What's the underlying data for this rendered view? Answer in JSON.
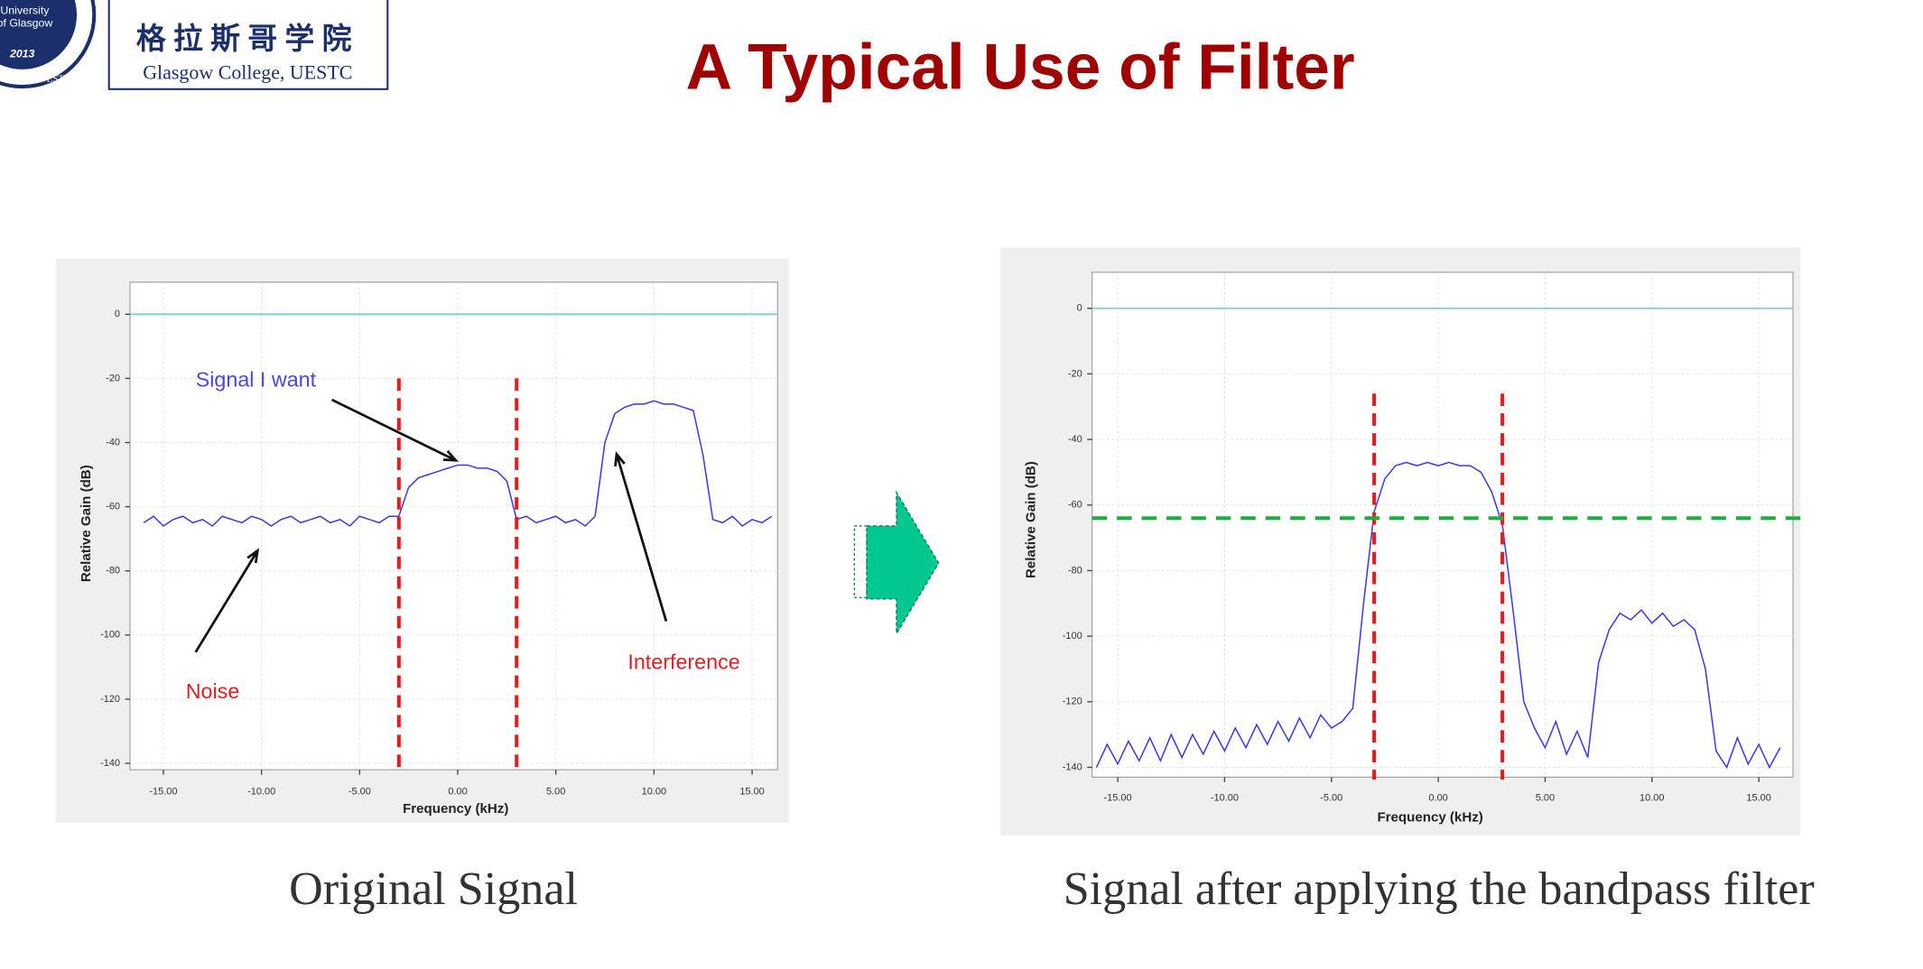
{
  "title": "A Typical Use of Filter",
  "logo": {
    "lines": [
      "University",
      "of Glasgow",
      "2013",
      "College, UESTC"
    ],
    "chinese": "格拉斯哥学院",
    "english": "Glasgow College, UESTC"
  },
  "captions": [
    "Original Signal",
    "Signal after applying the bandpass filter"
  ],
  "chart_data": [
    {
      "type": "line",
      "x_label": "Frequency (kHz)",
      "y_label": "Relative Gain (dB)",
      "xlim": [
        -16.7,
        16.3
      ],
      "ylim": [
        -142,
        10
      ],
      "xticks": [
        {
          "value": -15,
          "label": "-15.00"
        },
        {
          "value": -10,
          "label": "-10.00"
        },
        {
          "value": -5,
          "label": "-5.00"
        },
        {
          "value": 0,
          "label": "0.00"
        },
        {
          "value": 5,
          "label": "5.00"
        },
        {
          "value": 10,
          "label": "10.00"
        },
        {
          "value": 15,
          "label": "15.00"
        }
      ],
      "yticks": [
        0,
        -20,
        -40,
        -60,
        -80,
        -100,
        -120,
        -140
      ],
      "grid": true,
      "reference_line": 0,
      "reference_color": "#7ccfcf",
      "vlines": [
        -3,
        3
      ],
      "vline_color": "#e02020",
      "annotations": [
        {
          "text": "Signal I want",
          "color": "#4a4ad8"
        },
        {
          "text": "Noise",
          "color": "#e02020"
        },
        {
          "text": "Interference",
          "color": "#e02020"
        }
      ],
      "series": [
        {
          "color": "#3a3ae0",
          "x": [
            -16,
            -15.5,
            -15,
            -14.5,
            -14,
            -13.5,
            -13,
            -12.5,
            -12,
            -11.5,
            -11,
            -10.5,
            -10,
            -9.5,
            -9,
            -8.5,
            -8,
            -7.5,
            -7,
            -6.5,
            -6,
            -5.5,
            -5,
            -4.5,
            -4,
            -3.5,
            -3,
            -2.5,
            -2,
            -1.5,
            -1,
            -0.5,
            0,
            0.5,
            1,
            1.5,
            2,
            2.5,
            3,
            3.5,
            4,
            4.5,
            5,
            5.5,
            6,
            6.5,
            7,
            7.5,
            8,
            8.5,
            9,
            9.5,
            10,
            10.5,
            11,
            11.5,
            12,
            12.5,
            13,
            13.5,
            14,
            14.5,
            15,
            15.5,
            16
          ],
          "values": [
            -65,
            -63,
            -66,
            -64,
            -63,
            -65,
            -64,
            -66,
            -63,
            -64,
            -65,
            -63,
            -64,
            -66,
            -64,
            -63,
            -65,
            -64,
            -63,
            -65,
            -64,
            -66,
            -63,
            -64,
            -65,
            -63,
            -63,
            -54,
            -51,
            -50,
            -49,
            -48,
            -47,
            -47,
            -48,
            -48,
            -49,
            -52,
            -64,
            -63,
            -65,
            -64,
            -63,
            -65,
            -64,
            -66,
            -63,
            -40,
            -31,
            -29,
            -28,
            -28,
            -27,
            -28,
            -28,
            -29,
            -30,
            -44,
            -64,
            -65,
            -63,
            -66,
            -64,
            -65,
            -63
          ]
        }
      ]
    },
    {
      "type": "line",
      "x_label": "Frequency (kHz)",
      "y_label": "Relative Gain (dB)",
      "xlim": [
        -16.2,
        16.6
      ],
      "ylim": [
        -143,
        11
      ],
      "xticks": [
        {
          "value": -15,
          "label": "-15.00"
        },
        {
          "value": -10,
          "label": "-10.00"
        },
        {
          "value": -5,
          "label": "-5.00"
        },
        {
          "value": 0,
          "label": "0.00"
        },
        {
          "value": 5,
          "label": "5.00"
        },
        {
          "value": 10,
          "label": "10.00"
        },
        {
          "value": 15,
          "label": "15.00"
        }
      ],
      "yticks": [
        0,
        -20,
        -40,
        -60,
        -80,
        -100,
        -120,
        -140
      ],
      "grid": true,
      "reference_line": 0,
      "reference_color": "#7ccfcf",
      "vlines": [
        -3,
        3
      ],
      "vline_color": "#e02020",
      "hline": -64,
      "hline_color": "#22aa44",
      "series": [
        {
          "color": "#3a3ae0",
          "x": [
            -16,
            -15.5,
            -15,
            -14.5,
            -14,
            -13.5,
            -13,
            -12.5,
            -12,
            -11.5,
            -11,
            -10.5,
            -10,
            -9.5,
            -9,
            -8.5,
            -8,
            -7.5,
            -7,
            -6.5,
            -6,
            -5.5,
            -5,
            -4.5,
            -4,
            -3.5,
            -3,
            -2.5,
            -2,
            -1.5,
            -1,
            -0.5,
            0,
            0.5,
            1,
            1.5,
            2,
            2.5,
            3,
            3.5,
            4,
            4.5,
            5,
            5.5,
            6,
            6.5,
            7,
            7.5,
            8,
            8.5,
            9,
            9.5,
            10,
            10.5,
            11,
            11.5,
            12,
            12.5,
            13,
            13.5,
            14,
            14.5,
            15,
            15.5,
            16
          ],
          "values": [
            -140,
            -133,
            -139,
            -132,
            -138,
            -131,
            -138,
            -130,
            -137,
            -130,
            -136,
            -129,
            -135,
            -128,
            -134,
            -127,
            -133,
            -126,
            -132,
            -125,
            -131,
            -124,
            -128,
            -126,
            -122,
            -90,
            -62,
            -52,
            -48,
            -47,
            -48,
            -47,
            -48,
            -47,
            -48,
            -48,
            -50,
            -56,
            -66,
            -92,
            -120,
            -128,
            -134,
            -126,
            -136,
            -129,
            -137,
            -108,
            -98,
            -93,
            -95,
            -92,
            -96,
            -93,
            -97,
            -95,
            -98,
            -110,
            -135,
            -140,
            -131,
            -139,
            -133,
            -140,
            -134
          ]
        }
      ]
    }
  ]
}
